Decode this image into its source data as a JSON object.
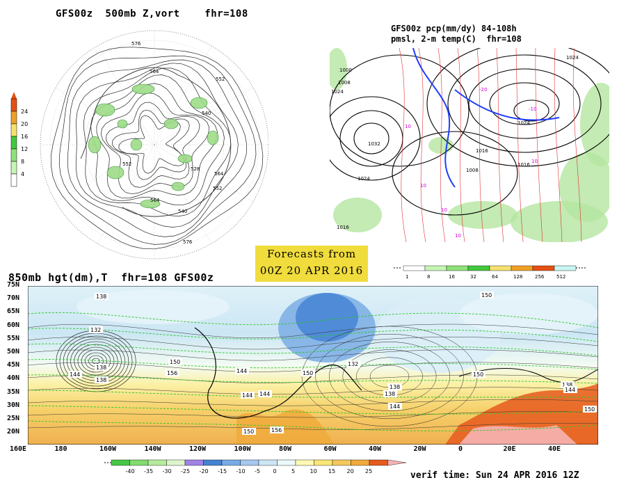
{
  "panels": {
    "vort": {
      "title": "GFS00z  500mb Z,vort    fhr=108",
      "colorbar": {
        "colors": [
          "#ffffff",
          "#c6f5b4",
          "#8ee27a",
          "#42c83c",
          "#f5e16e",
          "#f0a028",
          "#e65014"
        ],
        "labels": [
          "4",
          "8",
          "12",
          "16",
          "20",
          "24"
        ]
      },
      "contour_labels": [
        "576",
        "564",
        "552",
        "540",
        "528",
        "564",
        "552",
        "540",
        "576",
        "564",
        "552"
      ]
    },
    "precip": {
      "title_line1": "GFS00z pcp(mm/dy) 84-108h",
      "title_line2": "pmsl, 2-m temp(C)  fhr=108",
      "colorbar": {
        "colors": [
          "#ffffff",
          "#c6f5b4",
          "#8ee27a",
          "#42c83c",
          "#f5e16e",
          "#f0a028",
          "#e65014",
          "#c8f5f0"
        ],
        "labels": [
          "1",
          "8",
          "16",
          "32",
          "64",
          "128",
          "256",
          "512"
        ]
      },
      "pressure_labels": [
        "1024",
        "1032",
        "1024",
        "1016",
        "1008",
        "1000",
        "1024",
        "1016",
        "1008",
        "1016",
        "1024"
      ],
      "temp_labels": [
        "10",
        "-10",
        "-20",
        "10",
        "10",
        "10",
        "10"
      ]
    },
    "h850": {
      "title": "850mb hgt(dm),T  fhr=108 GFS00z",
      "lat_labels": [
        "75N",
        "70N",
        "65N",
        "60N",
        "55N",
        "50N",
        "45N",
        "40N",
        "35N",
        "30N",
        "25N",
        "20N"
      ],
      "lon_labels": [
        "160E",
        "180",
        "160W",
        "140W",
        "120W",
        "100W",
        "80W",
        "60W",
        "40W",
        "20W",
        "0",
        "20E",
        "40E"
      ],
      "contour_labels": [
        "138",
        "132",
        "138",
        "144",
        "156",
        "150",
        "138",
        "144",
        "150",
        "144",
        "150",
        "156",
        "144",
        "132",
        "138",
        "138",
        "144",
        "150",
        "150",
        "138",
        "144",
        "150"
      ],
      "colorbar": {
        "colors": [
          "#46c846",
          "#82dc6e",
          "#b4eb9c",
          "#dcf5cd",
          "#a082e6",
          "#4682d2",
          "#78aae6",
          "#a5c8f0",
          "#cde6f5",
          "#ecf8fb",
          "#fff8b4",
          "#fae678",
          "#f5c85a",
          "#f0aa3c",
          "#e65a1e",
          "#f5b4b4"
        ],
        "labels": [
          "-40",
          "-35",
          "-30",
          "-25",
          "-20",
          "-15",
          "-10",
          "-5",
          "0",
          "5",
          "10",
          "15",
          "20",
          "25"
        ]
      }
    }
  },
  "forecast_box": {
    "line1": "Forecasts from",
    "line2": "00Z 20 APR 2016"
  },
  "verif": "verif time: Sun 24 APR 2016 12Z"
}
